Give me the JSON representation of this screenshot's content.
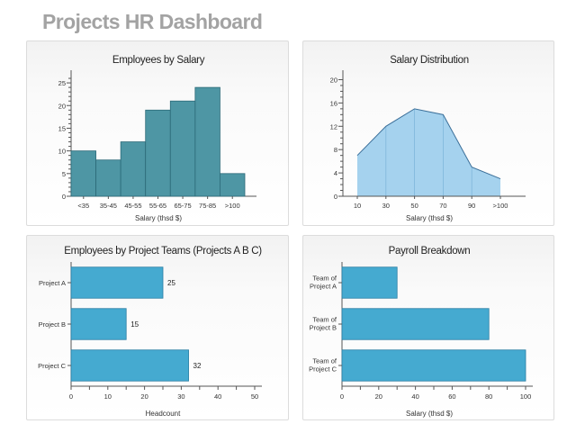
{
  "page_title": "Projects HR Dashboard",
  "colors": {
    "bar_dark": "#4e96a4",
    "bar_dark_stroke": "#2c6a78",
    "area_fill": "#a5d2ee",
    "area_stroke": "#3b6f99",
    "bar_light": "#45aad0",
    "bar_light_stroke": "#2a7ea4"
  },
  "chart_data": [
    {
      "type": "bar",
      "title": "Employees by Salary",
      "xlabel": "Salary (thsd $)",
      "ylabel": "",
      "categories": [
        "<35",
        "35-45",
        "45-55",
        "55-65",
        "65-75",
        "75-85",
        ">100"
      ],
      "values": [
        10,
        8,
        12,
        19,
        21,
        24,
        5
      ],
      "ylim": [
        0,
        27
      ],
      "yticks": [
        "0",
        "5",
        "10",
        "15",
        "20",
        "25"
      ]
    },
    {
      "type": "area",
      "title": "Salary Distribution",
      "xlabel": "Salary (thsd $)",
      "ylabel": "",
      "x": [
        "10",
        "30",
        "50",
        "70",
        "90",
        ">100"
      ],
      "values": [
        7,
        12,
        15,
        14,
        5,
        3
      ],
      "ylim": [
        0,
        21
      ],
      "yticks": [
        "0",
        "4",
        "8",
        "12",
        "16",
        "20"
      ]
    },
    {
      "type": "bar",
      "orientation": "horizontal",
      "title": "Employees by Project Teams (Projects A B C)",
      "xlabel": "Headcount",
      "ylabel": "",
      "categories": [
        "Project A",
        "Project B",
        "Project C"
      ],
      "values": [
        25,
        15,
        32
      ],
      "data_labels": [
        "25",
        "15",
        "32"
      ],
      "xlim": [
        0,
        50
      ],
      "xticks": [
        "0",
        "10",
        "20",
        "30",
        "40",
        "50"
      ]
    },
    {
      "type": "bar",
      "orientation": "horizontal",
      "title": "Payroll Breakdown",
      "xlabel": "Salary (thsd $)",
      "ylabel": "",
      "categories": [
        [
          "Team of",
          "Project A"
        ],
        [
          "Team of",
          "Project B"
        ],
        [
          "Team of",
          "Project C"
        ]
      ],
      "values": [
        30,
        80,
        100
      ],
      "xlim": [
        0,
        100
      ],
      "xticks": [
        "0",
        "20",
        "40",
        "60",
        "80",
        "100"
      ]
    }
  ]
}
